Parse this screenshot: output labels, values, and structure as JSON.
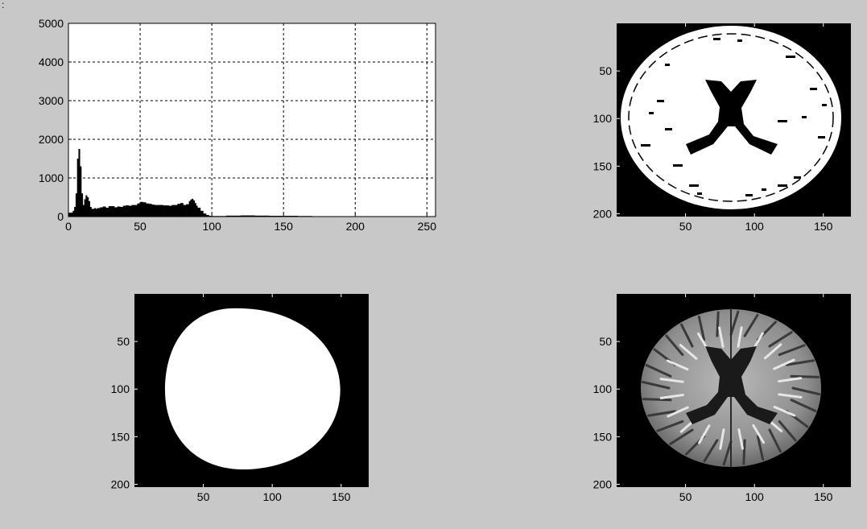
{
  "figure": {
    "background": "#c8c8c8",
    "corner_mark": ":"
  },
  "chart_data": [
    {
      "type": "bar",
      "panel": "histogram",
      "title": "",
      "xlabel": "",
      "ylabel": "",
      "xlim": [
        0,
        256
      ],
      "ylim": [
        0,
        5000
      ],
      "grid": true,
      "xticks": [
        0,
        50,
        100,
        150,
        200,
        250
      ],
      "yticks": [
        0,
        1000,
        2000,
        3000,
        4000,
        5000
      ],
      "x": [
        0,
        1,
        2,
        3,
        4,
        5,
        6,
        7,
        8,
        9,
        10,
        11,
        12,
        13,
        14,
        15,
        16,
        17,
        18,
        19,
        20,
        22,
        24,
        26,
        28,
        30,
        32,
        34,
        36,
        38,
        40,
        42,
        44,
        46,
        48,
        50,
        52,
        54,
        56,
        58,
        60,
        62,
        64,
        66,
        68,
        70,
        72,
        74,
        76,
        78,
        80,
        82,
        84,
        85,
        86,
        87,
        88,
        89,
        90,
        92,
        94,
        96,
        98,
        100,
        110,
        120,
        130,
        140,
        150,
        160,
        170,
        180,
        190,
        200,
        210,
        220,
        230,
        240,
        250,
        255
      ],
      "y": [
        100,
        100,
        100,
        150,
        250,
        600,
        1500,
        1750,
        1300,
        600,
        300,
        450,
        550,
        500,
        400,
        250,
        200,
        200,
        220,
        200,
        220,
        240,
        260,
        230,
        270,
        270,
        240,
        260,
        250,
        280,
        290,
        280,
        300,
        300,
        340,
        380,
        370,
        340,
        330,
        310,
        300,
        300,
        300,
        290,
        290,
        280,
        300,
        300,
        330,
        350,
        300,
        320,
        400,
        440,
        460,
        420,
        350,
        280,
        230,
        150,
        80,
        40,
        20,
        15,
        25,
        30,
        25,
        20,
        20,
        15,
        10,
        8,
        5,
        3,
        2,
        1,
        1,
        0,
        0,
        0
      ],
      "color": "#000000"
    },
    {
      "type": "image",
      "panel": "thresholded-brain",
      "xticks": [
        50,
        100,
        150
      ],
      "yticks": [
        50,
        100,
        150,
        200
      ],
      "xlim": [
        0,
        170
      ],
      "ylim": [
        0,
        203
      ]
    },
    {
      "type": "image",
      "panel": "brain-mask",
      "xticks": [
        50,
        100,
        150
      ],
      "yticks": [
        50,
        100,
        150,
        200
      ],
      "xlim": [
        0,
        170
      ],
      "ylim": [
        0,
        203
      ]
    },
    {
      "type": "image",
      "panel": "skull-stripped-mri",
      "xticks": [
        50,
        100,
        150
      ],
      "yticks": [
        50,
        100,
        150,
        200
      ],
      "xlim": [
        0,
        170
      ],
      "ylim": [
        0,
        203
      ]
    }
  ]
}
